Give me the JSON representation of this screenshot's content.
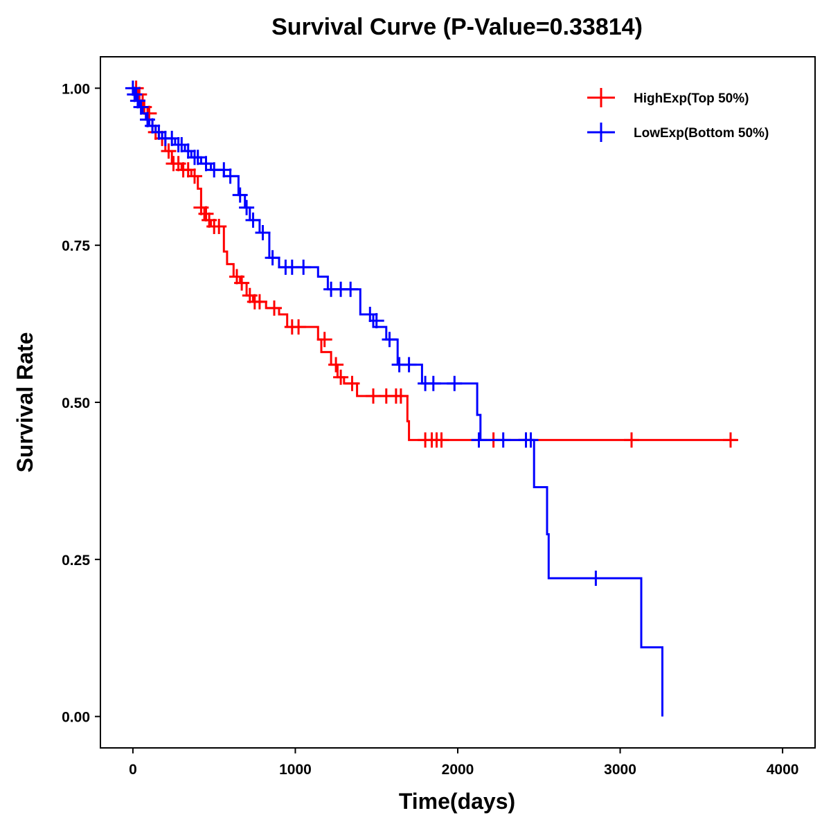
{
  "chart_data": {
    "type": "line",
    "title": "Survival Curve (P-Value=0.33814)",
    "xlabel": "Time(days)",
    "ylabel": "Survival Rate",
    "xlim": [
      -200,
      4200
    ],
    "ylim": [
      -0.05,
      1.05
    ],
    "x_ticks": [
      0,
      1000,
      2000,
      3000,
      4000
    ],
    "x_tick_labels": [
      "0",
      "1000",
      "2000",
      "3000",
      "4000"
    ],
    "y_ticks": [
      0,
      0.25,
      0.5,
      0.75,
      1.0
    ],
    "y_tick_labels": [
      "0.00",
      "0.25",
      "0.50",
      "0.75",
      "1.00"
    ],
    "grid": false,
    "legend_position": "top-right",
    "series": [
      {
        "name": "HighExp(Top 50%)",
        "color": "#ff0000",
        "steps": [
          [
            0,
            1.0
          ],
          [
            30,
            0.99
          ],
          [
            60,
            0.97
          ],
          [
            90,
            0.95
          ],
          [
            120,
            0.93
          ],
          [
            160,
            0.92
          ],
          [
            200,
            0.9
          ],
          [
            240,
            0.88
          ],
          [
            300,
            0.87
          ],
          [
            360,
            0.86
          ],
          [
            400,
            0.84
          ],
          [
            420,
            0.81
          ],
          [
            440,
            0.79
          ],
          [
            480,
            0.78
          ],
          [
            560,
            0.74
          ],
          [
            580,
            0.72
          ],
          [
            620,
            0.7
          ],
          [
            660,
            0.69
          ],
          [
            700,
            0.67
          ],
          [
            740,
            0.66
          ],
          [
            820,
            0.65
          ],
          [
            900,
            0.64
          ],
          [
            950,
            0.62
          ],
          [
            1140,
            0.6
          ],
          [
            1160,
            0.58
          ],
          [
            1220,
            0.56
          ],
          [
            1260,
            0.54
          ],
          [
            1300,
            0.53
          ],
          [
            1380,
            0.51
          ],
          [
            1690,
            0.47
          ],
          [
            1700,
            0.44
          ],
          [
            3720,
            0.44
          ]
        ],
        "censored": [
          [
            20,
            1.0
          ],
          [
            40,
            0.99
          ],
          [
            70,
            0.97
          ],
          [
            100,
            0.96
          ],
          [
            140,
            0.93
          ],
          [
            180,
            0.92
          ],
          [
            220,
            0.9
          ],
          [
            250,
            0.88
          ],
          [
            280,
            0.88
          ],
          [
            310,
            0.87
          ],
          [
            340,
            0.87
          ],
          [
            380,
            0.86
          ],
          [
            420,
            0.81
          ],
          [
            450,
            0.8
          ],
          [
            470,
            0.79
          ],
          [
            500,
            0.78
          ],
          [
            530,
            0.78
          ],
          [
            640,
            0.7
          ],
          [
            670,
            0.69
          ],
          [
            720,
            0.67
          ],
          [
            750,
            0.66
          ],
          [
            780,
            0.66
          ],
          [
            870,
            0.65
          ],
          [
            980,
            0.62
          ],
          [
            1020,
            0.62
          ],
          [
            1180,
            0.6
          ],
          [
            1250,
            0.56
          ],
          [
            1280,
            0.54
          ],
          [
            1350,
            0.53
          ],
          [
            1480,
            0.51
          ],
          [
            1560,
            0.51
          ],
          [
            1620,
            0.51
          ],
          [
            1650,
            0.51
          ],
          [
            1800,
            0.44
          ],
          [
            1840,
            0.44
          ],
          [
            1870,
            0.44
          ],
          [
            1900,
            0.44
          ],
          [
            2220,
            0.44
          ],
          [
            2420,
            0.44
          ],
          [
            3070,
            0.44
          ],
          [
            3680,
            0.44
          ]
        ]
      },
      {
        "name": "LowExp(Bottom 50%)",
        "color": "#0000ff",
        "steps": [
          [
            0,
            1.0
          ],
          [
            20,
            0.98
          ],
          [
            40,
            0.97
          ],
          [
            60,
            0.96
          ],
          [
            80,
            0.95
          ],
          [
            100,
            0.94
          ],
          [
            140,
            0.93
          ],
          [
            180,
            0.92
          ],
          [
            260,
            0.91
          ],
          [
            320,
            0.9
          ],
          [
            360,
            0.89
          ],
          [
            420,
            0.88
          ],
          [
            480,
            0.87
          ],
          [
            560,
            0.86
          ],
          [
            650,
            0.83
          ],
          [
            690,
            0.81
          ],
          [
            720,
            0.79
          ],
          [
            780,
            0.77
          ],
          [
            840,
            0.73
          ],
          [
            900,
            0.715
          ],
          [
            1140,
            0.7
          ],
          [
            1200,
            0.68
          ],
          [
            1400,
            0.64
          ],
          [
            1480,
            0.62
          ],
          [
            1560,
            0.6
          ],
          [
            1630,
            0.56
          ],
          [
            1780,
            0.53
          ],
          [
            2120,
            0.48
          ],
          [
            2140,
            0.44
          ],
          [
            2460,
            0.44
          ],
          [
            2470,
            0.365
          ],
          [
            2550,
            0.29
          ],
          [
            2560,
            0.22
          ],
          [
            3130,
            0.11
          ],
          [
            3260,
            0.0
          ]
        ],
        "censored": [
          [
            0,
            1.0
          ],
          [
            10,
            0.99
          ],
          [
            30,
            0.98
          ],
          [
            50,
            0.97
          ],
          [
            90,
            0.95
          ],
          [
            120,
            0.94
          ],
          [
            160,
            0.93
          ],
          [
            200,
            0.92
          ],
          [
            240,
            0.92
          ],
          [
            280,
            0.91
          ],
          [
            300,
            0.91
          ],
          [
            340,
            0.9
          ],
          [
            380,
            0.89
          ],
          [
            400,
            0.89
          ],
          [
            450,
            0.88
          ],
          [
            500,
            0.87
          ],
          [
            560,
            0.87
          ],
          [
            600,
            0.86
          ],
          [
            660,
            0.83
          ],
          [
            700,
            0.81
          ],
          [
            740,
            0.79
          ],
          [
            800,
            0.77
          ],
          [
            860,
            0.73
          ],
          [
            940,
            0.715
          ],
          [
            980,
            0.715
          ],
          [
            1050,
            0.715
          ],
          [
            1220,
            0.68
          ],
          [
            1280,
            0.68
          ],
          [
            1340,
            0.68
          ],
          [
            1460,
            0.64
          ],
          [
            1500,
            0.63
          ],
          [
            1580,
            0.6
          ],
          [
            1640,
            0.56
          ],
          [
            1700,
            0.56
          ],
          [
            1800,
            0.53
          ],
          [
            1850,
            0.53
          ],
          [
            1980,
            0.53
          ],
          [
            2130,
            0.44
          ],
          [
            2280,
            0.44
          ],
          [
            2420,
            0.44
          ],
          [
            2450,
            0.44
          ],
          [
            2850,
            0.22
          ]
        ]
      }
    ]
  }
}
